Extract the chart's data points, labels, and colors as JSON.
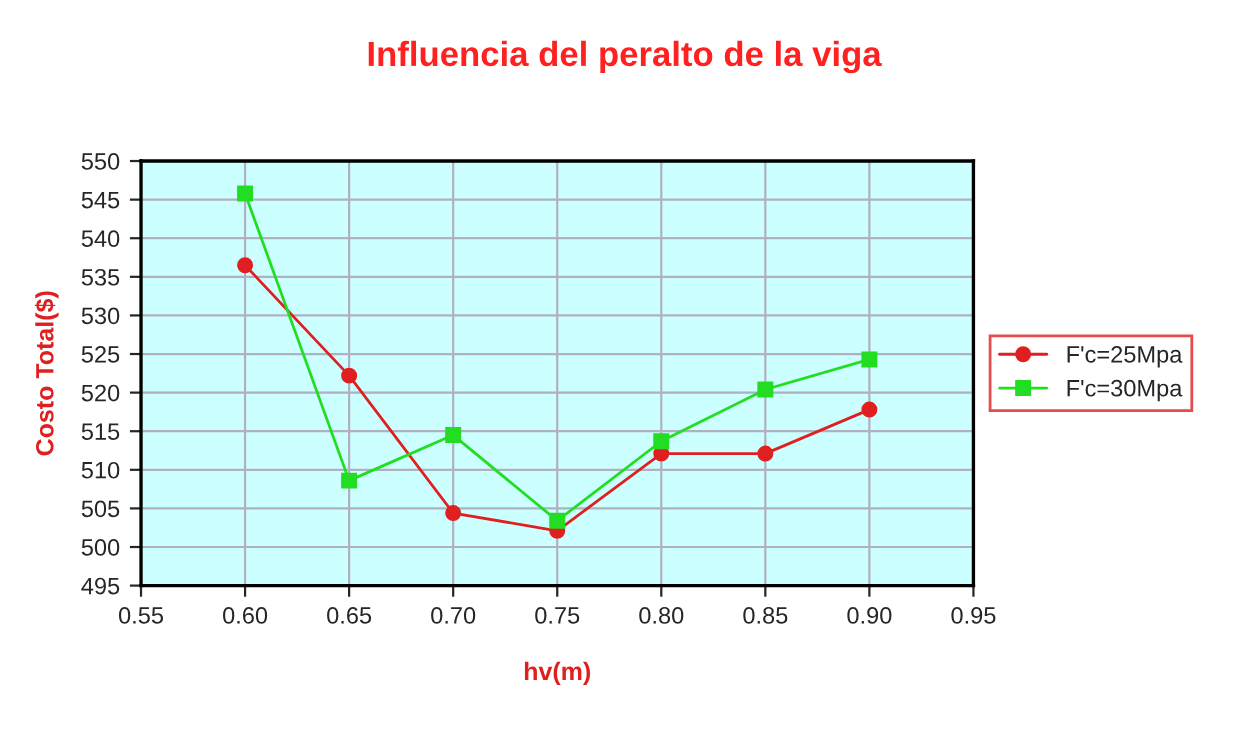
{
  "chart_data": {
    "type": "line",
    "title": "Influencia del peralto de la viga",
    "xlabel": "hv(m)",
    "ylabel": "Costo Total($)",
    "x": [
      0.6,
      0.65,
      0.7,
      0.75,
      0.8,
      0.85,
      0.9
    ],
    "series": [
      {
        "name": "F'c=25Mpa",
        "color": "#e02020",
        "marker": "circle",
        "values": [
          536.5,
          522.2,
          504.4,
          502.1,
          512.1,
          512.1,
          517.8
        ]
      },
      {
        "name": "F'c=30Mpa",
        "color": "#22dd22",
        "marker": "square",
        "values": [
          545.8,
          508.6,
          514.5,
          503.4,
          513.7,
          520.4,
          524.3
        ]
      }
    ],
    "xlim": [
      0.55,
      0.95
    ],
    "xticks": [
      {
        "value": 0.55,
        "label": "0.55"
      },
      {
        "value": 0.6,
        "label": "0.60"
      },
      {
        "value": 0.65,
        "label": "0.65"
      },
      {
        "value": 0.7,
        "label": "0.70"
      },
      {
        "value": 0.75,
        "label": "0.75"
      },
      {
        "value": 0.8,
        "label": "0.80"
      },
      {
        "value": 0.85,
        "label": "0.85"
      },
      {
        "value": 0.9,
        "label": "0.90"
      },
      {
        "value": 0.95,
        "label": "0.95"
      }
    ],
    "ylim": [
      495,
      550
    ],
    "yticks": [
      495,
      500,
      505,
      510,
      515,
      520,
      525,
      530,
      535,
      540,
      545,
      550
    ],
    "grid": true,
    "legend": "right",
    "line_style": "solid"
  }
}
